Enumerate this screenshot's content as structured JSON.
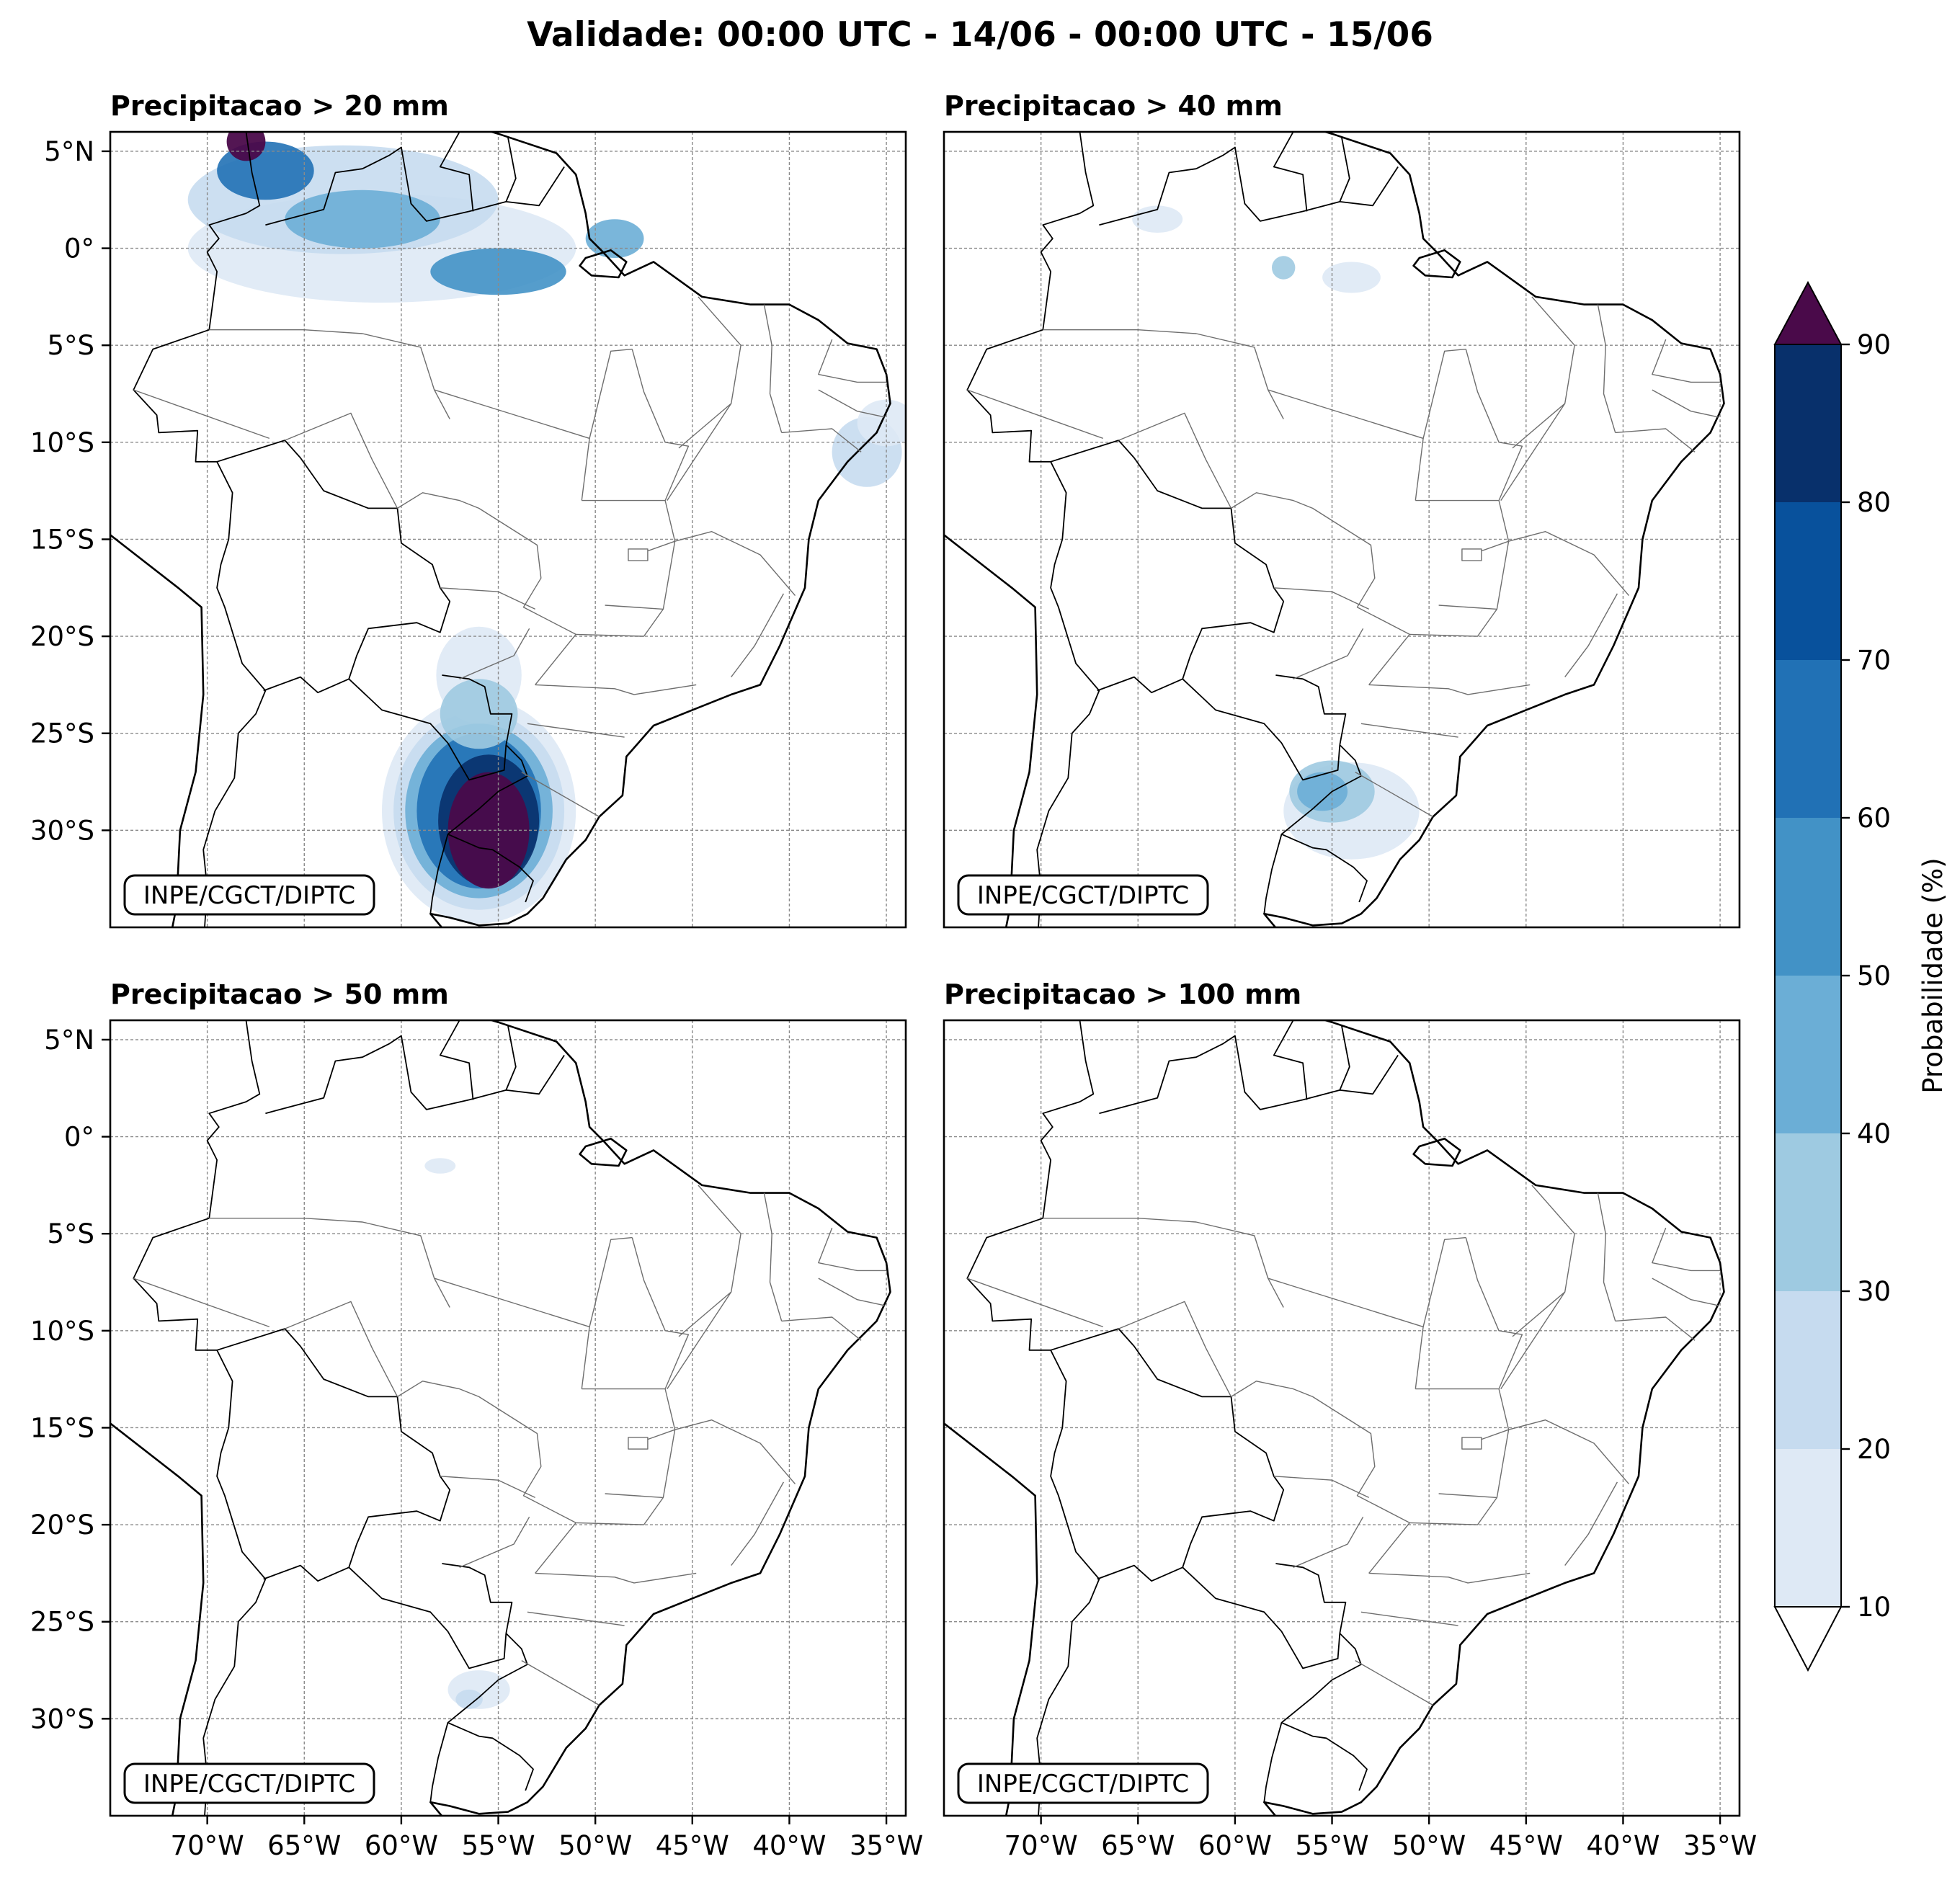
{
  "figure": {
    "title": "Validade: 00:00 UTC - 14/06 - 00:00 UTC - 15/06"
  },
  "panels": [
    {
      "title": "Precipitacao > 20 mm",
      "credit": "INPE/CGCT/DIPTC"
    },
    {
      "title": "Precipitacao > 40 mm",
      "credit": "INPE/CGCT/DIPTC"
    },
    {
      "title": "Precipitacao > 50 mm",
      "credit": "INPE/CGCT/DIPTC"
    },
    {
      "title": "Precipitacao > 100 mm",
      "credit": "INPE/CGCT/DIPTC"
    }
  ],
  "axes": {
    "lat_labels": [
      "5°N",
      "0°",
      "5°S",
      "10°S",
      "15°S",
      "20°S",
      "25°S",
      "30°S"
    ],
    "lat_values": [
      5,
      0,
      -5,
      -10,
      -15,
      -20,
      -25,
      -30
    ],
    "lon_labels": [
      "70°W",
      "65°W",
      "60°W",
      "55°W",
      "50°W",
      "45°W",
      "40°W",
      "35°W"
    ],
    "lon_values": [
      -70,
      -65,
      -60,
      -55,
      -50,
      -45,
      -40,
      -35
    ],
    "extent": {
      "lon_min": -75,
      "lon_max": -34,
      "lat_min": -35,
      "lat_max": 6
    }
  },
  "colorbar": {
    "label": "Probabilidade (%)",
    "ticks": [
      "10",
      "20",
      "30",
      "40",
      "50",
      "60",
      "70",
      "80",
      "90"
    ],
    "levels": [
      10,
      20,
      30,
      40,
      50,
      60,
      70,
      80,
      90
    ],
    "colors": [
      "#dee9f5",
      "#c6dbef",
      "#9ecae1",
      "#6baed6",
      "#4292c6",
      "#2171b5",
      "#08519c",
      "#08306b"
    ],
    "over_color": "#4a0a4a",
    "under_color": "#ffffff"
  },
  "chart_data": {
    "type": "map",
    "title": "Validade: 00:00 UTC - 14/06 - 00:00 UTC - 15/06",
    "variable": "Probabilidade (%)",
    "region": "Brasil",
    "panels": [
      {
        "threshold_mm": 20,
        "blobs": [
          {
            "lon": -56,
            "lat": -29,
            "rx": 5.0,
            "ry": 5.8,
            "level": 0
          },
          {
            "lon": -56,
            "lat": -29,
            "rx": 4.4,
            "ry": 5.1,
            "level": 1
          },
          {
            "lon": -56,
            "lat": -29,
            "rx": 3.8,
            "ry": 4.5,
            "level": 3
          },
          {
            "lon": -56,
            "lat": -29,
            "rx": 3.2,
            "ry": 4.0,
            "level": 5
          },
          {
            "lon": -55.5,
            "lat": -29.5,
            "rx": 2.6,
            "ry": 3.4,
            "level": 7
          },
          {
            "lon": -55.5,
            "lat": -30,
            "rx": 2.1,
            "ry": 3.0,
            "level": 8
          },
          {
            "lon": -56,
            "lat": -22,
            "rx": 2.2,
            "ry": 2.5,
            "level": 0
          },
          {
            "lon": -56,
            "lat": -24,
            "rx": 2.0,
            "ry": 1.8,
            "level": 2
          },
          {
            "lon": -61,
            "lat": 0,
            "rx": 10,
            "ry": 2.8,
            "level": 0
          },
          {
            "lon": -63,
            "lat": 2.5,
            "rx": 8,
            "ry": 2.8,
            "level": 1
          },
          {
            "lon": -62,
            "lat": 1.5,
            "rx": 4,
            "ry": 1.5,
            "level": 3
          },
          {
            "lon": -55,
            "lat": -1.2,
            "rx": 3.5,
            "ry": 1.2,
            "level": 4
          },
          {
            "lon": -67,
            "lat": 4.0,
            "rx": 2.5,
            "ry": 1.5,
            "level": 5
          },
          {
            "lon": -68,
            "lat": 5.5,
            "rx": 1.0,
            "ry": 1.0,
            "level": 8
          },
          {
            "lon": -49,
            "lat": 0.5,
            "rx": 1.5,
            "ry": 1.0,
            "level": 3
          },
          {
            "lon": -36,
            "lat": -10.5,
            "rx": 1.8,
            "ry": 1.8,
            "level": 1
          },
          {
            "lon": -35,
            "lat": -9,
            "rx": 1.5,
            "ry": 1.2,
            "level": 0
          }
        ]
      },
      {
        "threshold_mm": 40,
        "blobs": [
          {
            "lon": -54,
            "lat": -29,
            "rx": 3.5,
            "ry": 2.5,
            "level": 0
          },
          {
            "lon": -55,
            "lat": -28,
            "rx": 2.2,
            "ry": 1.6,
            "level": 2
          },
          {
            "lon": -55.5,
            "lat": -28,
            "rx": 1.3,
            "ry": 1.0,
            "level": 3
          },
          {
            "lon": -54,
            "lat": -1.5,
            "rx": 1.5,
            "ry": 0.8,
            "level": 0
          },
          {
            "lon": -57.5,
            "lat": -1.0,
            "rx": 0.6,
            "ry": 0.6,
            "level": 2
          },
          {
            "lon": -64,
            "lat": 1.5,
            "rx": 1.3,
            "ry": 0.7,
            "level": 0
          }
        ]
      },
      {
        "threshold_mm": 50,
        "blobs": [
          {
            "lon": -56,
            "lat": -28.5,
            "rx": 1.6,
            "ry": 1.0,
            "level": 0
          },
          {
            "lon": -56.5,
            "lat": -29,
            "rx": 0.7,
            "ry": 0.5,
            "level": 1
          },
          {
            "lon": -58,
            "lat": -1.5,
            "rx": 0.8,
            "ry": 0.4,
            "level": 0
          }
        ]
      },
      {
        "threshold_mm": 100,
        "blobs": []
      }
    ]
  }
}
